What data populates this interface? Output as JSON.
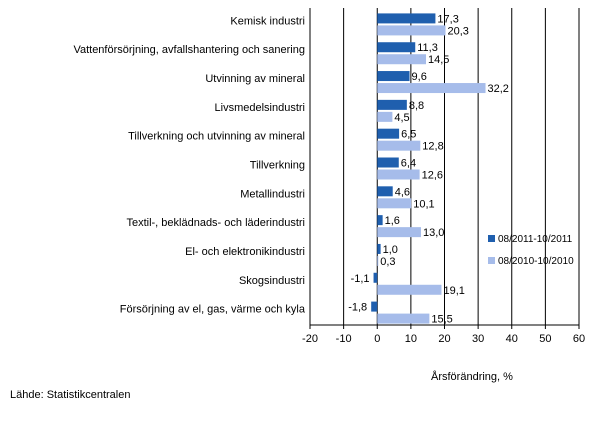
{
  "chart_data": {
    "type": "bar",
    "orientation": "horizontal",
    "categories": [
      "Kemisk industri",
      "Vattenförsörjning, avfallshantering och sanering",
      "Utvinning av mineral",
      "Livsmedelsindustri",
      "Tillverkning och utvinning av mineral",
      "Tillverkning",
      "Metallindustri",
      "Textil-, beklädnads- och läderindustri",
      "El- och elektronikindustri",
      "Skogsindustri",
      "Försörjning av el, gas, värme och kyla"
    ],
    "series": [
      {
        "name": "08/2011-10/2011",
        "color": "#1f5fae",
        "values": [
          17.3,
          11.3,
          9.6,
          8.8,
          6.5,
          6.4,
          4.6,
          1.6,
          1.0,
          -1.1,
          -1.8
        ],
        "labels": [
          "17,3",
          "11,3",
          "9,6",
          "8,8",
          "6,5",
          "6,4",
          "4,6",
          "1,6",
          "1,0",
          "-1,1",
          "-1,8"
        ]
      },
      {
        "name": "08/2010-10/2010",
        "color": "#a6bcea",
        "values": [
          20.3,
          14.5,
          32.2,
          4.5,
          12.8,
          12.6,
          10.1,
          13.0,
          0.3,
          19.1,
          15.5
        ],
        "labels": [
          "20,3",
          "14,5",
          "32,2",
          "4,5",
          "12,8",
          "12,6",
          "10,1",
          "13,0",
          "0,3",
          "19,1",
          "15,5"
        ]
      }
    ],
    "xlim": [
      -20,
      60
    ],
    "xticks": [
      -20,
      -10,
      0,
      10,
      20,
      30,
      40,
      50,
      60
    ],
    "xtick_labels": [
      "-20",
      "-10",
      "0",
      "10",
      "20",
      "30",
      "40",
      "50",
      "60"
    ],
    "xlabel": "Årsförändring, %",
    "grid": "vertical",
    "legend_position": "right"
  },
  "source": "Lähde: Statistikcentralen"
}
